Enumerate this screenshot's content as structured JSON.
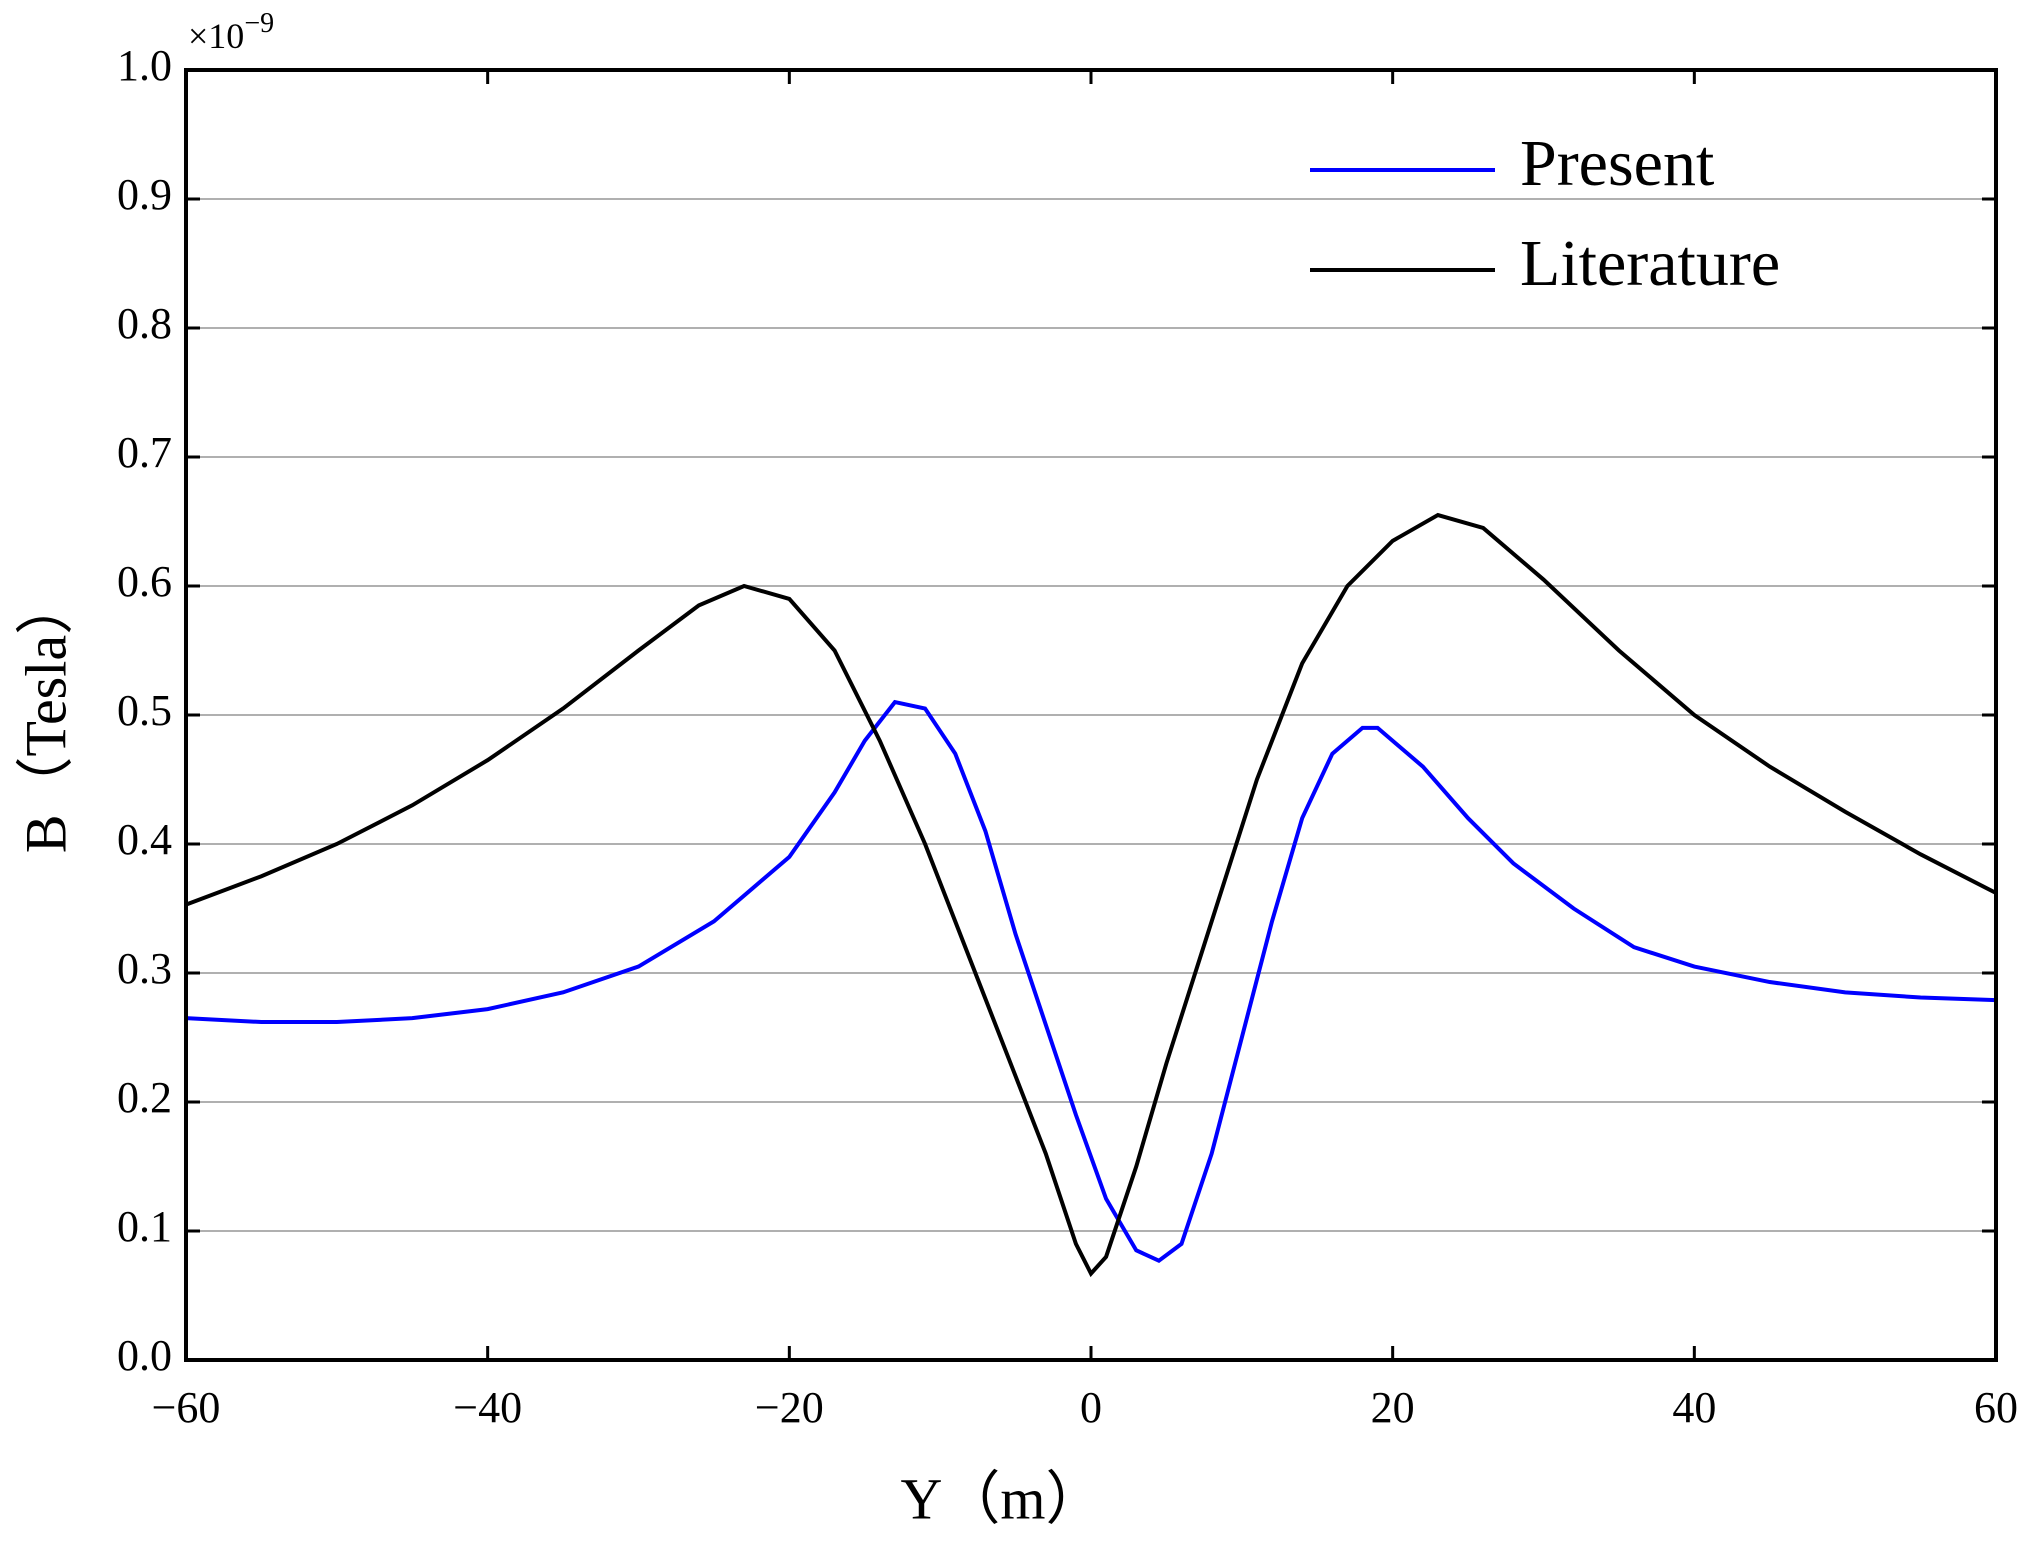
{
  "chart_data": {
    "type": "line",
    "x_label": "Y（m）",
    "y_label": "B（Tesla）",
    "y_multiplier": {
      "base": "×10",
      "exponent": "−9"
    },
    "xlim": [
      -60,
      60
    ],
    "ylim": [
      0,
      1.0
    ],
    "xticks": [
      {
        "value": -60,
        "label": "−60"
      },
      {
        "value": -40,
        "label": "−40"
      },
      {
        "value": -20,
        "label": "−20"
      },
      0,
      20,
      40,
      60
    ],
    "yticks": [
      {
        "value": 0,
        "label": "0.0"
      },
      0.1,
      0.2,
      0.3,
      0.4,
      0.5,
      0.6,
      0.7,
      0.8,
      0.9,
      {
        "value": 1.0,
        "label": "1.0"
      }
    ],
    "grid": true,
    "legend": "upper right",
    "series": [
      {
        "name": "Present",
        "color": "#0000ff",
        "x": [
          -60,
          -55,
          -50,
          -45,
          -40,
          -35,
          -30,
          -25,
          -20,
          -17,
          -15,
          -13,
          -11,
          -9,
          -7,
          -5,
          -3,
          -1,
          1,
          3,
          4.5,
          6,
          8,
          10,
          12,
          14,
          16,
          18,
          19,
          22,
          25,
          28,
          32,
          36,
          40,
          45,
          50,
          55,
          60
        ],
        "values": [
          0.265,
          0.262,
          0.262,
          0.265,
          0.272,
          0.285,
          0.305,
          0.34,
          0.39,
          0.44,
          0.48,
          0.51,
          0.505,
          0.47,
          0.41,
          0.33,
          0.26,
          0.19,
          0.125,
          0.085,
          0.077,
          0.09,
          0.16,
          0.25,
          0.34,
          0.42,
          0.47,
          0.49,
          0.49,
          0.46,
          0.42,
          0.385,
          0.35,
          0.32,
          0.305,
          0.293,
          0.285,
          0.281,
          0.279
        ]
      },
      {
        "name": "Literature",
        "color": "#000000",
        "x": [
          -60,
          -55,
          -50,
          -45,
          -40,
          -35,
          -30,
          -26,
          -23,
          -20,
          -17,
          -14,
          -11,
          -8,
          -5,
          -3,
          -1,
          0,
          1,
          3,
          5,
          8,
          11,
          14,
          17,
          20,
          23,
          26,
          30,
          35,
          40,
          45,
          50,
          55,
          60
        ],
        "values": [
          0.353,
          0.375,
          0.4,
          0.43,
          0.465,
          0.505,
          0.55,
          0.585,
          0.6,
          0.59,
          0.55,
          0.48,
          0.4,
          0.31,
          0.22,
          0.16,
          0.09,
          0.067,
          0.08,
          0.15,
          0.23,
          0.34,
          0.45,
          0.54,
          0.6,
          0.635,
          0.655,
          0.645,
          0.605,
          0.55,
          0.5,
          0.46,
          0.425,
          0.392,
          0.362
        ]
      }
    ]
  }
}
